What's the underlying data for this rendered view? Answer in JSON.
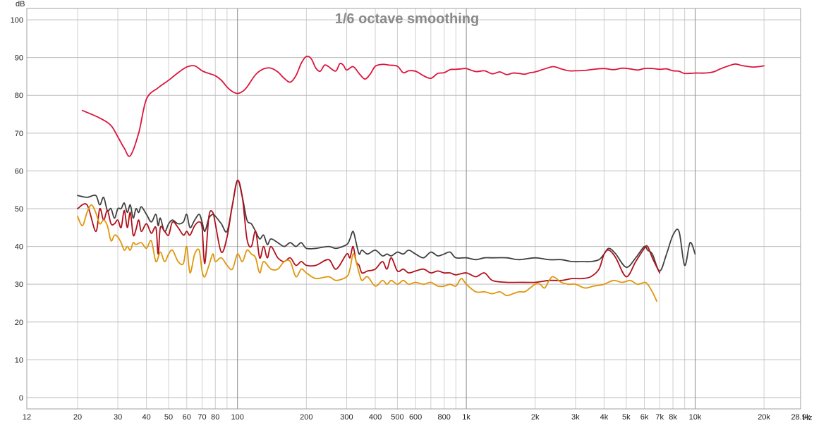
{
  "chart_data": {
    "type": "line",
    "title": "1/6 octave smoothing",
    "ylabel": "dB",
    "xunit": "Hz",
    "xscale": "log",
    "xlim": [
      12,
      28900
    ],
    "ylim": [
      -3,
      103
    ],
    "grid": true,
    "y_ticks": [
      0,
      10,
      20,
      30,
      40,
      50,
      60,
      70,
      80,
      90,
      100
    ],
    "x_ticks": [
      {
        "v": 12,
        "label": "12"
      },
      {
        "v": 20,
        "label": "20"
      },
      {
        "v": 30,
        "label": "30"
      },
      {
        "v": 40,
        "label": "40"
      },
      {
        "v": 50,
        "label": "50"
      },
      {
        "v": 60,
        "label": "60"
      },
      {
        "v": 70,
        "label": "70"
      },
      {
        "v": 80,
        "label": "80"
      },
      {
        "v": 100,
        "label": "100"
      },
      {
        "v": 200,
        "label": "200"
      },
      {
        "v": 300,
        "label": "300"
      },
      {
        "v": 400,
        "label": "400"
      },
      {
        "v": 500,
        "label": "500"
      },
      {
        "v": 600,
        "label": "600"
      },
      {
        "v": 800,
        "label": "800"
      },
      {
        "v": 1000,
        "label": "1k"
      },
      {
        "v": 2000,
        "label": "2k"
      },
      {
        "v": 3000,
        "label": "3k"
      },
      {
        "v": 4000,
        "label": "4k"
      },
      {
        "v": 5000,
        "label": "5k"
      },
      {
        "v": 6000,
        "label": "6k"
      },
      {
        "v": 7000,
        "label": "7k"
      },
      {
        "v": 8000,
        "label": "8k"
      },
      {
        "v": 10000,
        "label": "10k"
      },
      {
        "v": 20000,
        "label": "20k"
      },
      {
        "v": 28900,
        "label": "28.9k"
      }
    ],
    "series": [
      {
        "color": "#dc143c",
        "x": [
          21,
          25,
          28,
          30,
          32,
          34,
          37,
          40,
          45,
          50,
          55,
          60,
          65,
          70,
          75,
          80,
          85,
          90,
          95,
          100,
          105,
          110,
          120,
          130,
          140,
          150,
          160,
          170,
          180,
          190,
          200,
          210,
          220,
          230,
          240,
          250,
          260,
          270,
          280,
          290,
          300,
          320,
          340,
          360,
          380,
          400,
          430,
          460,
          500,
          530,
          560,
          600,
          650,
          700,
          750,
          800,
          850,
          900,
          950,
          1000,
          1100,
          1200,
          1300,
          1400,
          1500,
          1600,
          1700,
          1800,
          1900,
          2000,
          2200,
          2400,
          2600,
          2800,
          3000,
          3300,
          3600,
          4000,
          4400,
          4800,
          5200,
          5600,
          6000,
          6500,
          7000,
          7500,
          8000,
          8500,
          9000,
          10000,
          11000,
          12000,
          13000,
          14000,
          15000,
          16000,
          18000,
          20000
        ],
        "y": [
          76,
          74,
          72,
          69,
          66,
          64,
          70,
          79,
          82,
          84,
          86,
          87.5,
          87.8,
          86.5,
          85.8,
          85.2,
          84,
          82.2,
          81,
          80.5,
          81,
          82.2,
          85.5,
          87,
          87.2,
          86.2,
          84.5,
          83.5,
          85.2,
          88.5,
          90.3,
          89.7,
          87.2,
          86.4,
          88,
          87.6,
          86.8,
          86.5,
          88.4,
          88,
          86.7,
          87.6,
          85.8,
          84.3,
          85.6,
          87.7,
          88.2,
          88,
          87.7,
          86,
          86.5,
          86.4,
          85.2,
          84.5,
          85.8,
          86,
          86.8,
          86.9,
          87,
          87.1,
          86.3,
          86.5,
          85.7,
          86.2,
          85.5,
          85.9,
          85.8,
          85.6,
          86,
          86.2,
          87,
          87.6,
          87,
          86.5,
          86.5,
          86.6,
          86.9,
          87.1,
          86.8,
          87.2,
          87,
          86.7,
          87.1,
          87.1,
          86.9,
          87,
          86.5,
          86.4,
          85.8,
          85.9,
          85.9,
          86.2,
          87.1,
          87.8,
          88.3,
          87.9,
          87.5,
          87.8
        ]
      },
      {
        "color": "#404040",
        "x": [
          20,
          22,
          24,
          25,
          26,
          27,
          28,
          29,
          30,
          31,
          32,
          33,
          34,
          35,
          36,
          37,
          38,
          40,
          42,
          44,
          45,
          46,
          48,
          50,
          52,
          55,
          58,
          60,
          62,
          65,
          68,
          70,
          72,
          75,
          78,
          80,
          85,
          90,
          95,
          100,
          105,
          110,
          115,
          120,
          125,
          130,
          135,
          140,
          150,
          160,
          170,
          180,
          190,
          200,
          220,
          250,
          270,
          300,
          310,
          320,
          330,
          340,
          350,
          370,
          400,
          430,
          450,
          470,
          500,
          530,
          560,
          600,
          650,
          700,
          750,
          800,
          850,
          900,
          1000,
          1100,
          1200,
          1300,
          1500,
          1700,
          2000,
          2300,
          2600,
          2900,
          3200,
          3500,
          3800,
          4000,
          4200,
          4500,
          5000,
          5500,
          6000,
          6200,
          6500,
          7000,
          7500,
          8000,
          8500,
          9000,
          9500,
          10000
        ],
        "y": [
          53.5,
          53,
          53.5,
          51,
          53,
          49.5,
          50,
          47.5,
          50,
          50,
          51.5,
          49,
          51,
          47.5,
          50,
          49,
          50.5,
          48.5,
          46.5,
          48.5,
          45.5,
          47.5,
          44,
          46,
          47,
          46,
          46.5,
          48.5,
          45,
          47,
          48.5,
          46.5,
          44,
          47.5,
          48.5,
          48,
          46,
          44,
          51,
          57.5,
          53,
          47,
          46,
          44,
          42,
          43,
          40.5,
          42,
          41,
          40,
          41,
          40,
          41,
          39.5,
          39.5,
          40,
          39.5,
          40.5,
          42,
          44,
          41,
          38,
          39,
          38,
          39,
          37.5,
          38,
          37.5,
          38.5,
          38,
          39,
          38,
          37,
          38.5,
          37.5,
          38,
          38.5,
          37,
          37,
          36.5,
          37,
          37,
          37,
          36.5,
          37,
          36.5,
          36.5,
          36,
          36,
          36,
          36.5,
          38,
          39.5,
          38,
          34.5,
          37,
          40,
          39,
          38,
          33.5,
          38,
          43,
          44,
          35,
          41,
          38
        ]
      },
      {
        "color": "#b0101a",
        "x": [
          20,
          22,
          24,
          25,
          26,
          27,
          28,
          29,
          30,
          31,
          32,
          33,
          34,
          35,
          36,
          37,
          38,
          40,
          42,
          44,
          45,
          46,
          48,
          50,
          52,
          55,
          58,
          60,
          62,
          65,
          68,
          70,
          72,
          75,
          78,
          80,
          85,
          90,
          95,
          100,
          105,
          110,
          115,
          120,
          125,
          130,
          135,
          140,
          150,
          160,
          170,
          180,
          190,
          200,
          220,
          250,
          270,
          300,
          310,
          320,
          330,
          340,
          350,
          370,
          400,
          430,
          450,
          470,
          500,
          530,
          560,
          600,
          650,
          700,
          750,
          800,
          850,
          900,
          1000,
          1100,
          1200,
          1300,
          1500,
          1700,
          2000,
          2300,
          2600,
          2900,
          3200,
          3500,
          3800,
          4000,
          4200,
          4500,
          5000,
          5500,
          6000,
          6200,
          6500,
          7000
        ],
        "y": [
          50,
          51,
          44,
          50,
          47,
          49.5,
          46,
          46,
          47,
          45,
          49.5,
          45,
          49,
          43,
          44.5,
          47,
          44,
          46,
          43.5,
          45,
          38,
          45,
          44,
          43,
          46.5,
          45,
          43,
          44,
          43,
          45.5,
          46.5,
          45,
          35.5,
          48,
          49,
          46,
          38.5,
          42.5,
          51,
          57.5,
          53,
          42,
          40,
          44,
          37,
          40,
          37,
          40,
          37,
          36,
          37,
          35,
          36,
          35,
          35,
          36.5,
          34,
          38,
          37,
          40,
          36,
          35,
          33,
          33.5,
          34,
          36,
          34,
          37,
          33.5,
          34,
          33,
          33.5,
          34,
          33,
          33.5,
          33,
          33,
          32.5,
          33,
          32,
          33,
          31,
          30.5,
          30.5,
          30.5,
          31,
          31,
          31.5,
          31.5,
          32,
          34,
          38,
          39,
          37,
          32,
          36,
          39.5,
          40,
          37,
          33
        ]
      },
      {
        "color": "#e0960a",
        "x": [
          20,
          21,
          22,
          23,
          24,
          25,
          26,
          27,
          28,
          29,
          30,
          31,
          32,
          33,
          34,
          35,
          36,
          38,
          40,
          42,
          44,
          46,
          48,
          50,
          52,
          55,
          58,
          60,
          62,
          65,
          68,
          70,
          72,
          75,
          78,
          80,
          85,
          90,
          95,
          100,
          105,
          110,
          115,
          120,
          125,
          130,
          140,
          150,
          160,
          170,
          180,
          190,
          200,
          220,
          250,
          270,
          300,
          310,
          320,
          330,
          340,
          350,
          370,
          400,
          430,
          450,
          470,
          500,
          530,
          560,
          600,
          650,
          700,
          750,
          800,
          850,
          900,
          950,
          1000,
          1100,
          1200,
          1300,
          1400,
          1500,
          1600,
          1700,
          1800,
          1900,
          2000,
          2100,
          2200,
          2300,
          2400,
          2600,
          2800,
          3000,
          3300,
          3600,
          4000,
          4400,
          4800,
          5200,
          5600,
          6000,
          6200,
          6500,
          6800
        ],
        "y": [
          48,
          45.5,
          49,
          51,
          49,
          46,
          47,
          45.5,
          41.5,
          43,
          42.5,
          41,
          39,
          40,
          39,
          41,
          40.5,
          41,
          39.5,
          41.5,
          36,
          38.5,
          36,
          38,
          39,
          36,
          35.5,
          40,
          33,
          38,
          39,
          33.5,
          32,
          35,
          38,
          36,
          37,
          35,
          34,
          38,
          36,
          39,
          38,
          37,
          33,
          36,
          34,
          34,
          36,
          36,
          32,
          34,
          33,
          31.5,
          32,
          31,
          32,
          34,
          38,
          36,
          33,
          31,
          32,
          29.5,
          31,
          30,
          31,
          30,
          31,
          30,
          30.5,
          30,
          30.5,
          29.5,
          29.5,
          30,
          29.5,
          31.5,
          30,
          28,
          28,
          27.5,
          28,
          27,
          27.5,
          28,
          28,
          29,
          30,
          30,
          29,
          31,
          32,
          30.5,
          30,
          30,
          29,
          29.5,
          30,
          31,
          30.5,
          31,
          30,
          30.5,
          30,
          28,
          25.5
        ]
      }
    ]
  }
}
